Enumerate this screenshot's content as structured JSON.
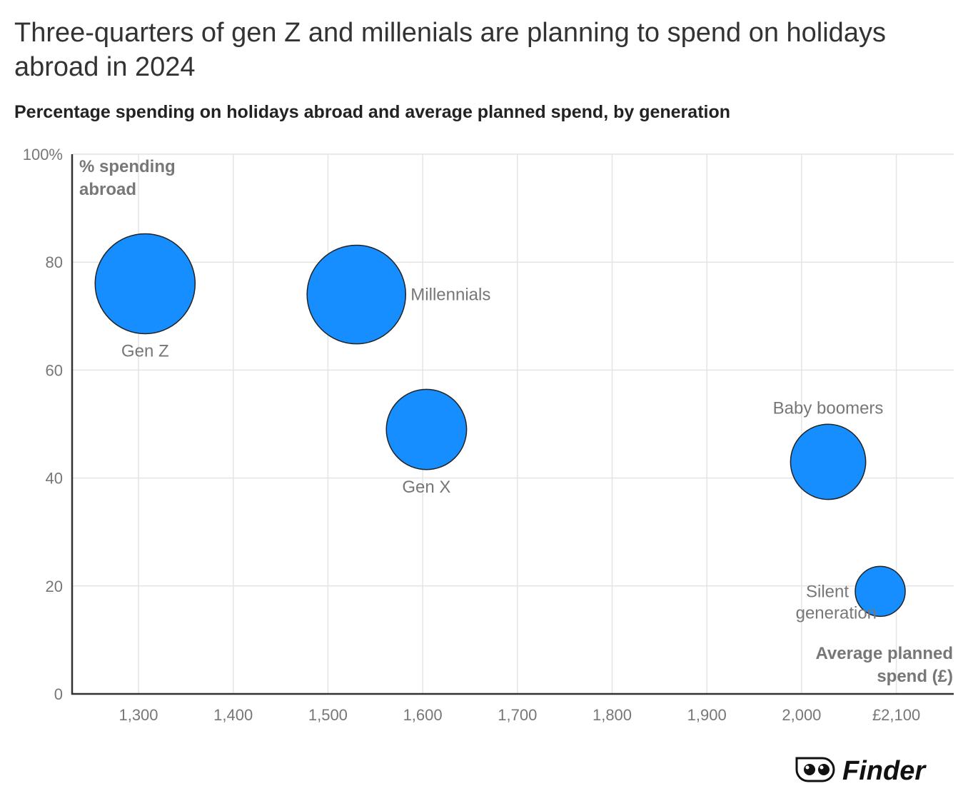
{
  "chart_data": {
    "type": "bubble",
    "title": "Three-quarters of gen Z and millenials are planning to spend on holidays abroad in 2024",
    "subtitle": "Percentage spending on holidays abroad and average planned spend, by generation",
    "xlabel": "Average planned spend (£)",
    "ylabel": "% spending abroad",
    "xlim": [
      1230,
      2160
    ],
    "ylim": [
      0,
      100
    ],
    "x_ticks": [
      1300,
      1400,
      1500,
      1600,
      1700,
      1800,
      1900,
      2000,
      2100
    ],
    "x_tick_labels": [
      "1,300",
      "1,400",
      "1,500",
      "1,600",
      "1,700",
      "1,800",
      "1,900",
      "2,000",
      "£2,100"
    ],
    "y_ticks": [
      0,
      20,
      40,
      60,
      80,
      100
    ],
    "y_tick_labels": [
      "0",
      "20",
      "40",
      "60",
      "80",
      "100%"
    ],
    "grid": true,
    "bubble_color": "#168EFF",
    "points": [
      {
        "label": "Gen Z",
        "x": 1307,
        "y": 76,
        "size": 76,
        "label_pos": "below"
      },
      {
        "label": "Millennials",
        "x": 1530,
        "y": 74,
        "size": 74,
        "label_pos": "right"
      },
      {
        "label": "Gen X",
        "x": 1604,
        "y": 49,
        "size": 49,
        "label_pos": "below"
      },
      {
        "label": "Baby boomers",
        "x": 2028,
        "y": 43,
        "size": 43,
        "label_pos": "above"
      },
      {
        "label": "Silent generation",
        "x": 2083,
        "y": 19,
        "size": 19,
        "label_pos": "left"
      }
    ]
  },
  "brand": {
    "name": "Finder"
  }
}
